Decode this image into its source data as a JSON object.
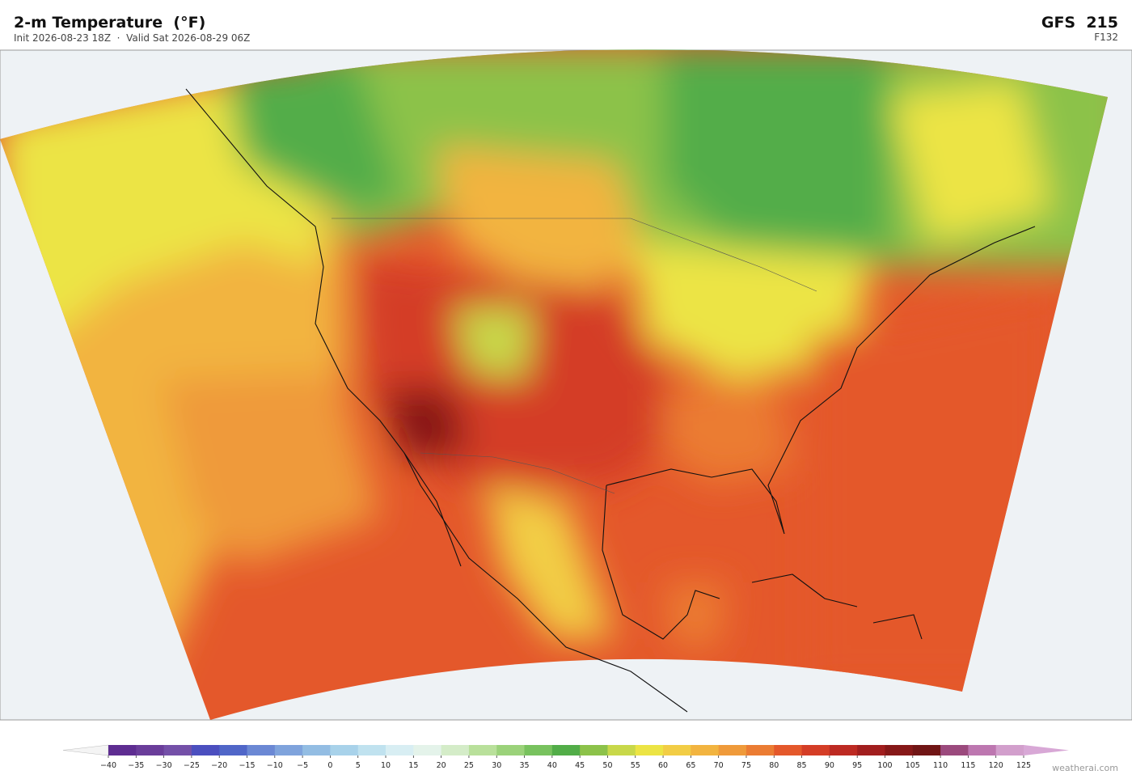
{
  "header": {
    "title": "2-m Temperature  (°F)",
    "subtitle": "Init 2026-08-23 18Z  ·  Valid Sat 2026-08-29 06Z",
    "model": "GFS  215",
    "forecast_hour": "F132"
  },
  "colorbar": {
    "ticks": [
      {
        "value": -40,
        "label": "−40"
      },
      {
        "value": -35,
        "label": "−35"
      },
      {
        "value": -30,
        "label": "−30"
      },
      {
        "value": -25,
        "label": "−25"
      },
      {
        "value": -20,
        "label": "−20"
      },
      {
        "value": -15,
        "label": "−15"
      },
      {
        "value": -10,
        "label": "−10"
      },
      {
        "value": -5,
        "label": "−5"
      },
      0,
      5,
      10,
      15,
      20,
      25,
      30,
      35,
      40,
      45,
      50,
      55,
      60,
      65,
      70,
      75,
      80,
      85,
      90,
      95,
      100,
      105,
      110,
      115,
      120,
      125
    ],
    "colors": [
      "#5e2d91",
      "#6a3d9a",
      "#7450a8",
      "#4b4fbf",
      "#5066c8",
      "#6b88d4",
      "#7fa3dc",
      "#93bde3",
      "#a8d2ea",
      "#c0e2ef",
      "#d8eef3",
      "#e4f3ea",
      "#d4ecc8",
      "#b9e09b",
      "#9bd27a",
      "#78c25e",
      "#52ad48",
      "#8cc24a",
      "#c8d84a",
      "#ece444",
      "#f2cd45",
      "#f2b440",
      "#ef9a3a",
      "#eb7c33",
      "#e4582b",
      "#d43d26",
      "#bd2a22",
      "#a11e1e",
      "#861818",
      "#701515",
      "#9b4a7d",
      "#bd77b0",
      "#d29fcc"
    ],
    "under_color": "#f4f4f4",
    "over_color": "#d8a8d6"
  },
  "footer": {
    "credit": "weatherai.com"
  }
}
